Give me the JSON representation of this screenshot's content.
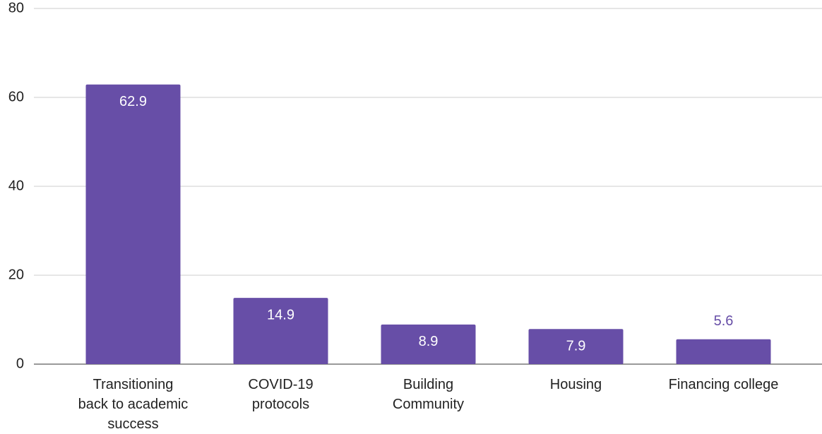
{
  "chart_data": {
    "type": "bar",
    "categories": [
      "Transitioning back to academic success",
      "COVID-19 protocols",
      "Building Community",
      "Housing",
      "Financing college"
    ],
    "values": [
      62.9,
      14.9,
      8.9,
      7.9,
      5.6
    ],
    "color": "#674ea7",
    "ylim": [
      0,
      80
    ],
    "yticks": [
      0,
      20,
      40,
      60,
      80
    ],
    "grid": true
  }
}
